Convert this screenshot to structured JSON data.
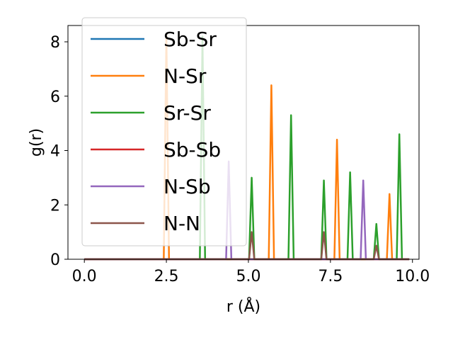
{
  "chart_data": {
    "type": "line",
    "xlabel": "r (Å)",
    "ylabel": "g(r)",
    "xlim": [
      -0.5,
      10.2
    ],
    "ylim": [
      0,
      8.6
    ],
    "xticks": [
      "0.0",
      "2.5",
      "5.0",
      "7.5",
      "10.0"
    ],
    "yticks": [
      "0",
      "2",
      "4",
      "6",
      "8"
    ],
    "grid": false,
    "legend_position": "top-left",
    "series": [
      {
        "name": "Sb-Sr",
        "color": "#1f77b4",
        "peaks": []
      },
      {
        "name": "N-Sr",
        "color": "#ff7f0e",
        "peaks": [
          [
            2.5,
            8.3
          ],
          [
            5.7,
            6.4
          ],
          [
            7.7,
            4.4
          ],
          [
            9.3,
            2.4
          ]
        ]
      },
      {
        "name": "Sr-Sr",
        "color": "#2ca02c",
        "peaks": [
          [
            3.6,
            8.2
          ],
          [
            5.1,
            3.0
          ],
          [
            6.3,
            5.3
          ],
          [
            7.3,
            2.9
          ],
          [
            8.1,
            3.2
          ],
          [
            8.9,
            1.3
          ],
          [
            9.6,
            4.6
          ]
        ]
      },
      {
        "name": "Sb-Sb",
        "color": "#d62728",
        "peaks": []
      },
      {
        "name": "N-Sb",
        "color": "#9467bd",
        "peaks": [
          [
            4.4,
            3.6
          ],
          [
            8.5,
            2.9
          ]
        ]
      },
      {
        "name": "N-N",
        "color": "#8c564b",
        "peaks": [
          [
            5.1,
            1.0
          ],
          [
            7.3,
            1.0
          ],
          [
            8.9,
            0.5
          ]
        ]
      }
    ],
    "x_range": [
      0,
      9.9
    ]
  }
}
